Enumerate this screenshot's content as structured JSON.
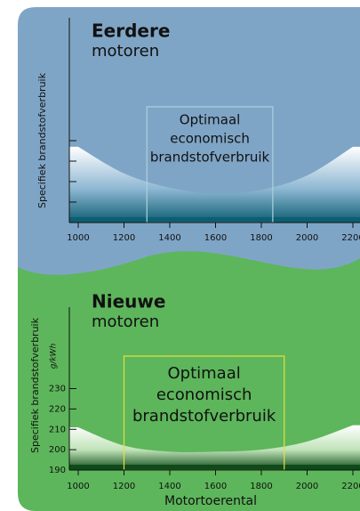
{
  "chart_data": [
    {
      "type": "area",
      "title": [
        "Eerdere",
        "motoren"
      ],
      "ylabel": "Specifiek brandstofverbruik",
      "x": [
        1000,
        1200,
        1400,
        1600,
        1800,
        2000,
        2200
      ],
      "values": [
        3.7,
        2.4,
        1.7,
        1.4,
        1.6,
        2.3,
        3.7
      ],
      "xlim": [
        1000,
        2200
      ],
      "xticks": [
        1000,
        1200,
        1400,
        1600,
        1800,
        2000,
        2200
      ],
      "ylim": [
        0,
        10
      ],
      "yticks": [
        1,
        2,
        3,
        4
      ],
      "ytick_labels": false,
      "optimal_range": [
        1300,
        1850
      ],
      "optimal_label": [
        "Optimaal",
        "economisch",
        "brandstofverbruik"
      ],
      "color": "#0d5e72",
      "box_color": "#a9d2e0"
    },
    {
      "type": "area",
      "title": [
        "Nieuwe",
        "motoren"
      ],
      "ylabel": "Specifiek brandstofverbruik",
      "yunit": "g/kWh",
      "xlabel": "Motortoerental",
      "x": [
        1000,
        1200,
        1400,
        1600,
        1800,
        2000,
        2200
      ],
      "values": [
        211,
        202,
        199,
        199,
        200,
        204,
        212
      ],
      "xlim": [
        1000,
        2200
      ],
      "xticks": [
        1000,
        1200,
        1400,
        1600,
        1800,
        2000,
        2200
      ],
      "ylim": [
        190,
        270
      ],
      "yticks": [
        190,
        200,
        210,
        220,
        230
      ],
      "ytick_labels": true,
      "optimal_range": [
        1200,
        1900
      ],
      "optimal_label": [
        "Optimaal",
        "economisch",
        "brandstofverbruik"
      ],
      "color": "#0e4a1a",
      "box_color": "#e6e03a"
    }
  ]
}
